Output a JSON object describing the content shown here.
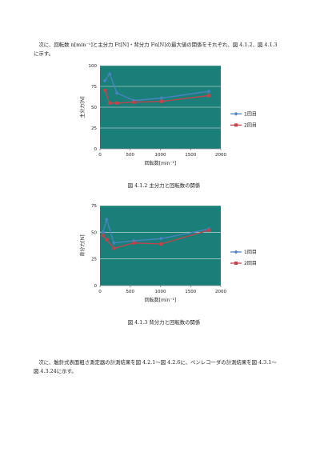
{
  "paragraphs": {
    "p1_line1": "　次に、回転数 n[min⁻¹]と主分力 Ft[N]・背分力 Fn[N]の最大値の関係をそれぞれ、図 4.1.2、図 4.1.3",
    "p1_line2": "に示す。",
    "p2_line1": "　次に、触針式表面粗さ測定器の計測結果を図 4.2.1～図 4.2.6に、ペンレコーダの計測結果を図 4.3.1～",
    "p2_line2": "図 4.3.24に示す。"
  },
  "captions": {
    "fig1": "図 4.1.2 主分力と回転数の関係",
    "fig2": "図 4.1.3 背分力と回転数の関係"
  },
  "colors": {
    "plot_bg": "#1a7f78",
    "series1": "#4a84c4",
    "series2": "#c8414a"
  },
  "chart_data": [
    {
      "type": "line",
      "xlabel": "回転数[min⁻¹]",
      "ylabel": "主分力[N]",
      "xlim": [
        0,
        2000
      ],
      "ylim": [
        0,
        100
      ],
      "xticks": [
        "0",
        "500",
        "1000",
        "1500",
        "2000"
      ],
      "yticks": [
        "0",
        "25",
        "50",
        "75",
        "100"
      ],
      "legend_position": "right",
      "series": [
        {
          "name": "1回目",
          "x": [
            80,
            160,
            280,
            560,
            1020,
            1800
          ],
          "y": [
            82,
            90,
            67,
            58,
            61,
            69
          ]
        },
        {
          "name": "2回目",
          "x": [
            80,
            160,
            280,
            560,
            1020,
            1800
          ],
          "y": [
            70,
            55,
            55,
            56,
            57,
            64
          ]
        }
      ]
    },
    {
      "type": "line",
      "xlabel": "回転数[min⁻¹]",
      "ylabel": "背分力[N]",
      "xlim": [
        0,
        2000
      ],
      "ylim": [
        0,
        75
      ],
      "xticks": [
        "0",
        "500",
        "1000",
        "1500",
        "2000"
      ],
      "yticks": [
        "0",
        "25",
        "50",
        "75"
      ],
      "legend_position": "right",
      "series": [
        {
          "name": "1回目",
          "x": [
            50,
            110,
            230,
            560,
            1010,
            1800
          ],
          "y": [
            50,
            62,
            40,
            42,
            44,
            53
          ]
        },
        {
          "name": "2回目",
          "x": [
            50,
            110,
            230,
            560,
            1010,
            1800
          ],
          "y": [
            47,
            43,
            35,
            40,
            39,
            52
          ]
        }
      ]
    }
  ]
}
